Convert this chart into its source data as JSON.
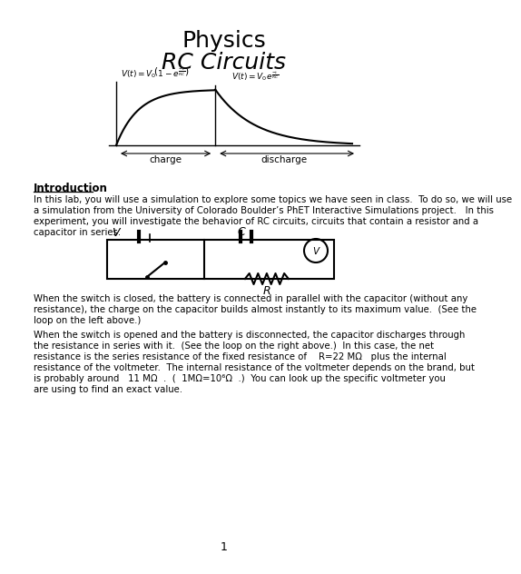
{
  "title_line1": "Physics",
  "title_line2": "RC Circuits",
  "intro_heading": "Introduction",
  "intro_lines": [
    "In this lab, you will use a simulation to explore some topics we have seen in class.  To do so, we will use",
    "a simulation from the University of Colorado Boulder’s PhET Interactive Simulations project.   In this",
    "experiment, you will investigate the behavior of RC circuits, circuits that contain a resistor and a",
    "capacitor in series."
  ],
  "para1_lines": [
    "When the switch is closed, the battery is connected in parallel with the capacitor (without any",
    "resistance), the charge on the capacitor builds almost instantly to its maximum value.  (See the",
    "loop on the left above.)"
  ],
  "para2_lines": [
    "When the switch is opened and the battery is disconnected, the capacitor discharges through",
    "the resistance in series with it.  (See the loop on the right above.)  In this case, the net",
    "resistance is the series resistance of the fixed resistance of    R=22 MΩ   plus the internal",
    "resistance of the voltmeter.  The internal resistance of the voltmeter depends on the brand, but",
    "is probably around   11 MΩ  .  (  1MΩ=10⁶Ω  .)  You can look up the specific voltmeter you",
    "are using to find an exact value."
  ],
  "page_number": "1",
  "bg_color": "#ffffff",
  "text_color": "#000000"
}
